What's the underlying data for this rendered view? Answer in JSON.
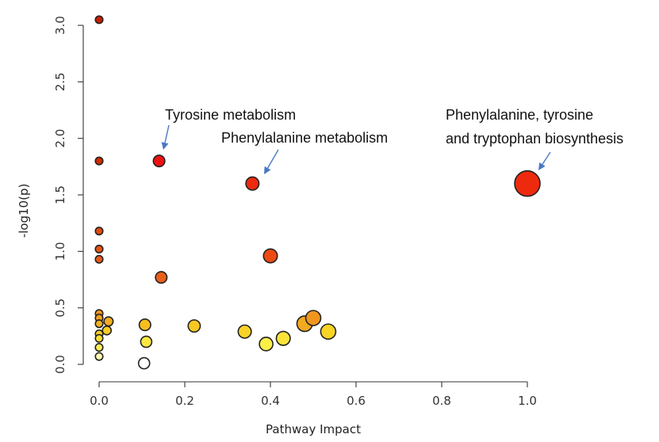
{
  "chart_data": {
    "type": "scatter",
    "title": "",
    "xlabel": "Pathway Impact",
    "ylabel": "-log10(p)",
    "xlim": [
      0.0,
      1.0
    ],
    "ylim": [
      0.0,
      3.0
    ],
    "xticks": [
      "0.0",
      "0.2",
      "0.4",
      "0.6",
      "0.8",
      "1.0"
    ],
    "yticks": [
      "0.0",
      "0.5",
      "1.0",
      "1.5",
      "2.0",
      "2.5",
      "3.0"
    ],
    "grid": false,
    "legend": "none",
    "points": [
      {
        "x": 0.0,
        "y": 3.05,
        "size": 0.1,
        "color": "#c81e00"
      },
      {
        "x": 0.0,
        "y": 1.8,
        "size": 0.1,
        "color": "#d42a00"
      },
      {
        "x": 0.0,
        "y": 1.18,
        "size": 0.1,
        "color": "#e04a10"
      },
      {
        "x": 0.0,
        "y": 1.02,
        "size": 0.1,
        "color": "#e45414"
      },
      {
        "x": 0.0,
        "y": 0.93,
        "size": 0.1,
        "color": "#e65a18"
      },
      {
        "x": 0.0,
        "y": 0.45,
        "size": 0.1,
        "color": "#f3961e"
      },
      {
        "x": 0.0,
        "y": 0.41,
        "size": 0.1,
        "color": "#f4a020"
      },
      {
        "x": 0.0,
        "y": 0.36,
        "size": 0.1,
        "color": "#f6b220"
      },
      {
        "x": 0.0,
        "y": 0.27,
        "size": 0.1,
        "color": "#f8d024"
      },
      {
        "x": 0.0,
        "y": 0.23,
        "size": 0.1,
        "color": "#fae030"
      },
      {
        "x": 0.0,
        "y": 0.15,
        "size": 0.1,
        "color": "#fcee5a"
      },
      {
        "x": 0.0,
        "y": 0.07,
        "size": 0.1,
        "color": "#fdf8b0"
      },
      {
        "x": 0.022,
        "y": 0.38,
        "size": 0.18,
        "color": "#f6ac20"
      },
      {
        "x": 0.018,
        "y": 0.3,
        "size": 0.16,
        "color": "#f8cc24"
      },
      {
        "x": 0.14,
        "y": 1.8,
        "size": 0.3,
        "color": "#ee1010"
      },
      {
        "x": 0.145,
        "y": 0.77,
        "size": 0.3,
        "color": "#e8601a"
      },
      {
        "x": 0.107,
        "y": 0.35,
        "size": 0.3,
        "color": "#f6be20"
      },
      {
        "x": 0.11,
        "y": 0.2,
        "size": 0.28,
        "color": "#fbe840"
      },
      {
        "x": 0.105,
        "y": 0.01,
        "size": 0.28,
        "color": "#ffffff"
      },
      {
        "x": 0.222,
        "y": 0.34,
        "size": 0.33,
        "color": "#f8c822"
      },
      {
        "x": 0.358,
        "y": 1.6,
        "size": 0.38,
        "color": "#ee2a0e"
      },
      {
        "x": 0.4,
        "y": 0.96,
        "size": 0.42,
        "color": "#ec4a12"
      },
      {
        "x": 0.34,
        "y": 0.29,
        "size": 0.38,
        "color": "#f8d226"
      },
      {
        "x": 0.39,
        "y": 0.18,
        "size": 0.4,
        "color": "#fcef48"
      },
      {
        "x": 0.43,
        "y": 0.23,
        "size": 0.42,
        "color": "#fbe43a"
      },
      {
        "x": 0.5,
        "y": 0.41,
        "size": 0.48,
        "color": "#f0961e"
      },
      {
        "x": 0.48,
        "y": 0.36,
        "size": 0.5,
        "color": "#f4aa20"
      },
      {
        "x": 0.535,
        "y": 0.29,
        "size": 0.48,
        "color": "#f8d426"
      },
      {
        "x": 1.0,
        "y": 1.6,
        "size": 1.0,
        "color": "#ee2a0e"
      }
    ],
    "annotations": [
      {
        "lines": [
          "Tyrosine metabolism"
        ],
        "target": [
          0.14,
          1.8
        ]
      },
      {
        "lines": [
          "Phenylalanine metabolism"
        ],
        "target": [
          0.358,
          1.6
        ]
      },
      {
        "lines": [
          "Phenylalanine, tyrosine",
          "and tryptophan biosynthesis"
        ],
        "target": [
          1.0,
          1.6
        ]
      }
    ]
  }
}
